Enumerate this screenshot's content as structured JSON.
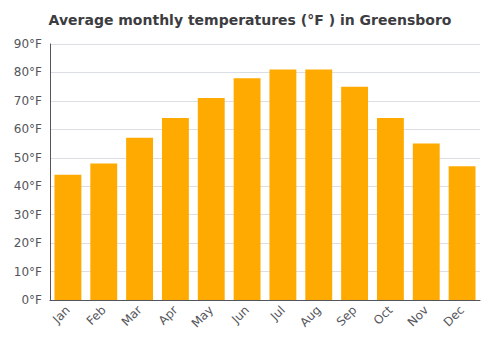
{
  "chart_data": {
    "type": "bar",
    "title": "Average monthly temperatures (°F ) in Greensboro",
    "categories": [
      "Jan",
      "Feb",
      "Mar",
      "Apr",
      "May",
      "Jun",
      "Jul",
      "Aug",
      "Sep",
      "Oct",
      "Nov",
      "Dec"
    ],
    "values": [
      44,
      48,
      57,
      64,
      71,
      78,
      81,
      81,
      75,
      64,
      55,
      47
    ],
    "color": "#FFAA00",
    "ylim": [
      0,
      90
    ],
    "yticks": [
      {
        "value": 0,
        "label": "0°F"
      },
      {
        "value": 10,
        "label": "10°F"
      },
      {
        "value": 20,
        "label": "20°F"
      },
      {
        "value": 30,
        "label": "30°F"
      },
      {
        "value": 40,
        "label": "40°F"
      },
      {
        "value": 50,
        "label": "50°F"
      },
      {
        "value": 60,
        "label": "60°F"
      },
      {
        "value": 70,
        "label": "70°F"
      },
      {
        "value": 80,
        "label": "80°F"
      },
      {
        "value": 90,
        "label": "90°F"
      }
    ],
    "grid": true
  }
}
